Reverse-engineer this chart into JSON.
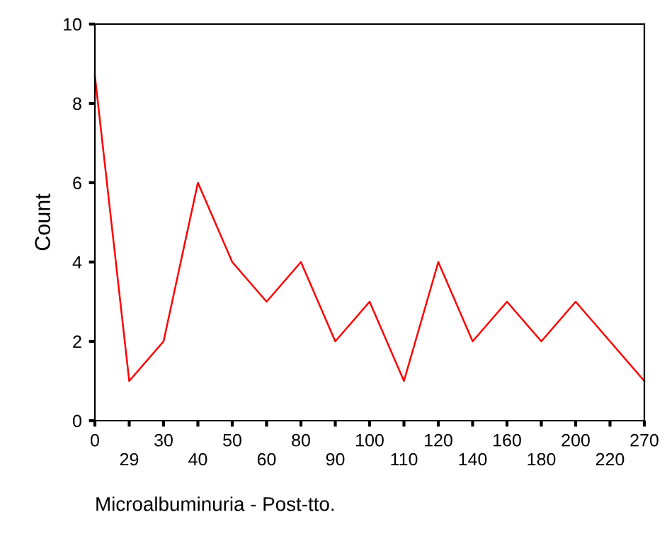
{
  "chart_data": {
    "type": "line",
    "xlabel": "Microalbuminuria - Post-tto.",
    "ylabel": "Count",
    "categories": [
      "0",
      "29",
      "30",
      "40",
      "50",
      "60",
      "80",
      "90",
      "100",
      "110",
      "120",
      "140",
      "160",
      "180",
      "200",
      "220",
      "270"
    ],
    "series": [
      {
        "color": "#ff0000",
        "values": [
          8.7,
          1,
          2,
          6,
          4,
          3,
          4,
          2,
          3,
          1,
          4,
          2,
          3,
          2,
          3,
          2,
          1
        ]
      }
    ],
    "ylim": [
      0,
      10
    ],
    "yticks": [
      0,
      2,
      4,
      6,
      8,
      10
    ],
    "grid": false,
    "legend": false,
    "marker": "none",
    "line_style": "solid"
  }
}
